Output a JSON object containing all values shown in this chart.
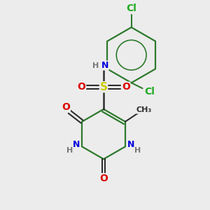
{
  "background_color": "#ececec",
  "bond_color": "#2d2d2d",
  "aromatic_bond_color": "#2d7a2d",
  "atom_colors": {
    "C": "#2d2d2d",
    "N": "#0000dd",
    "O": "#dd0000",
    "S": "#cccc00",
    "Cl": "#22aa22",
    "H": "#777777"
  },
  "figsize": [
    3.0,
    3.0
  ],
  "dpi": 100
}
